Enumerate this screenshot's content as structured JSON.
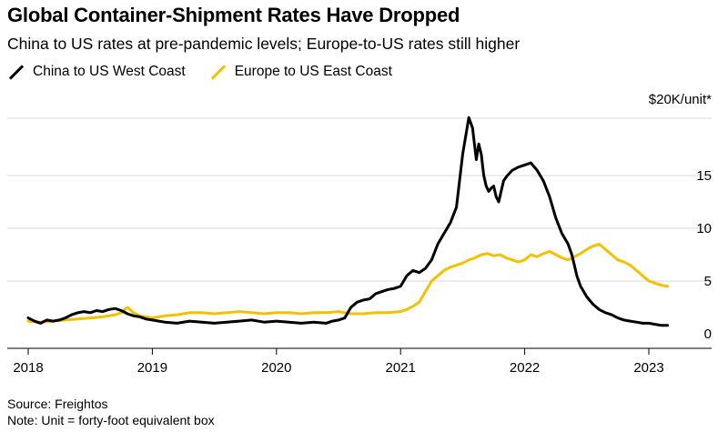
{
  "title": "Global Container-Shipment Rates Have Dropped",
  "subtitle": "China to US rates at pre-pandemic levels; Europe-to-US rates still higher",
  "source": "Source: Freightos",
  "note": "Note: Unit = forty-foot equivalent box",
  "chart_data": {
    "type": "line",
    "title": "Global Container-Shipment Rates Have Dropped",
    "subtitle": "China to US rates at pre-pandemic levels; Europe-to-US rates still higher",
    "ylabel": "$20K/unit*",
    "ylim": [
      0,
      20
    ],
    "y_ticks": [
      0,
      5,
      10,
      15
    ],
    "y_tick_labels": [
      "0",
      "5",
      "10",
      "15"
    ],
    "y_unit_label": "$20K/unit*",
    "x_ticks": [
      2018,
      2019,
      2020,
      2021,
      2022,
      2023
    ],
    "x_tick_labels": [
      "2018",
      "2019",
      "2020",
      "2021",
      "2022",
      "2023"
    ],
    "xlim": [
      2017.98,
      2023.35
    ],
    "grid": "horizontal",
    "legend_position": "top-left",
    "series": [
      {
        "name": "China to US West Coast",
        "color": "#000000",
        "x": [
          2018.0,
          2018.05,
          2018.1,
          2018.15,
          2018.2,
          2018.25,
          2018.3,
          2018.35,
          2018.4,
          2018.45,
          2018.5,
          2018.55,
          2018.6,
          2018.65,
          2018.7,
          2018.75,
          2018.8,
          2018.85,
          2018.9,
          2018.95,
          2019.0,
          2019.1,
          2019.2,
          2019.3,
          2019.4,
          2019.5,
          2019.6,
          2019.7,
          2019.8,
          2019.9,
          2020.0,
          2020.1,
          2020.2,
          2020.3,
          2020.4,
          2020.45,
          2020.5,
          2020.55,
          2020.6,
          2020.65,
          2020.7,
          2020.75,
          2020.8,
          2020.85,
          2020.9,
          2020.95,
          2021.0,
          2021.05,
          2021.1,
          2021.15,
          2021.2,
          2021.25,
          2021.3,
          2021.35,
          2021.4,
          2021.45,
          2021.5,
          2021.55,
          2021.58,
          2021.61,
          2021.63,
          2021.65,
          2021.67,
          2021.69,
          2021.71,
          2021.73,
          2021.75,
          2021.77,
          2021.79,
          2021.81,
          2021.83,
          2021.86,
          2021.9,
          2021.95,
          2022.0,
          2022.05,
          2022.1,
          2022.15,
          2022.2,
          2022.25,
          2022.3,
          2022.35,
          2022.38,
          2022.4,
          2022.42,
          2022.45,
          2022.5,
          2022.55,
          2022.6,
          2022.65,
          2022.7,
          2022.75,
          2022.8,
          2022.85,
          2022.9,
          2022.95,
          2023.0,
          2023.05,
          2023.1,
          2023.15
        ],
        "values": [
          1.5,
          1.2,
          1.0,
          1.3,
          1.2,
          1.3,
          1.5,
          1.8,
          2.0,
          2.1,
          2.0,
          2.2,
          2.1,
          2.3,
          2.4,
          2.2,
          1.9,
          1.7,
          1.6,
          1.4,
          1.3,
          1.1,
          1.0,
          1.2,
          1.1,
          1.0,
          1.1,
          1.2,
          1.3,
          1.1,
          1.2,
          1.1,
          1.0,
          1.1,
          1.0,
          1.2,
          1.3,
          1.5,
          2.5,
          3.0,
          3.2,
          3.3,
          3.8,
          4.0,
          4.2,
          4.3,
          4.5,
          5.5,
          6.0,
          5.8,
          6.2,
          7.0,
          8.5,
          9.5,
          10.5,
          12.0,
          17.0,
          20.5,
          19.5,
          16.5,
          18.0,
          17.0,
          15.0,
          14.0,
          13.5,
          13.8,
          14.0,
          13.0,
          12.5,
          13.5,
          14.5,
          15.0,
          15.5,
          15.8,
          16.0,
          16.2,
          15.5,
          14.5,
          13.0,
          11.0,
          9.5,
          8.5,
          7.5,
          6.5,
          5.5,
          4.5,
          3.5,
          2.8,
          2.3,
          2.0,
          1.8,
          1.5,
          1.3,
          1.2,
          1.1,
          1.0,
          1.0,
          0.9,
          0.8,
          0.8
        ],
        "y_display_note": "values are read off the printed 0–15 axis"
      },
      {
        "name": "Europe to US East Coast",
        "color": "#f2c200",
        "x": [
          2018.0,
          2018.1,
          2018.2,
          2018.3,
          2018.4,
          2018.5,
          2018.6,
          2018.7,
          2018.75,
          2018.8,
          2018.85,
          2018.9,
          2018.95,
          2019.0,
          2019.1,
          2019.2,
          2019.3,
          2019.4,
          2019.5,
          2019.6,
          2019.7,
          2019.8,
          2019.9,
          2020.0,
          2020.1,
          2020.2,
          2020.3,
          2020.4,
          2020.5,
          2020.6,
          2020.7,
          2020.8,
          2020.9,
          2021.0,
          2021.05,
          2021.1,
          2021.15,
          2021.2,
          2021.25,
          2021.3,
          2021.35,
          2021.4,
          2021.45,
          2021.5,
          2021.55,
          2021.6,
          2021.65,
          2021.7,
          2021.75,
          2021.8,
          2021.85,
          2021.9,
          2021.95,
          2022.0,
          2022.05,
          2022.1,
          2022.15,
          2022.2,
          2022.25,
          2022.3,
          2022.35,
          2022.4,
          2022.45,
          2022.5,
          2022.55,
          2022.6,
          2022.65,
          2022.7,
          2022.75,
          2022.8,
          2022.85,
          2022.9,
          2022.95,
          2023.0,
          2023.05,
          2023.1,
          2023.15
        ],
        "values": [
          1.2,
          1.1,
          1.2,
          1.3,
          1.4,
          1.5,
          1.6,
          1.8,
          2.0,
          2.5,
          2.0,
          1.7,
          1.6,
          1.5,
          1.7,
          1.8,
          2.0,
          2.0,
          1.9,
          2.0,
          2.1,
          2.0,
          1.9,
          2.0,
          2.0,
          1.9,
          2.0,
          2.0,
          2.1,
          1.9,
          1.9,
          2.0,
          2.0,
          2.1,
          2.3,
          2.6,
          3.0,
          4.0,
          5.0,
          5.5,
          6.0,
          6.3,
          6.5,
          6.7,
          7.0,
          7.2,
          7.5,
          7.6,
          7.4,
          7.5,
          7.2,
          7.0,
          6.8,
          7.0,
          7.5,
          7.3,
          7.6,
          7.8,
          7.5,
          7.2,
          7.0,
          7.3,
          7.6,
          8.0,
          8.3,
          8.5,
          8.0,
          7.5,
          7.0,
          6.8,
          6.5,
          6.0,
          5.5,
          5.0,
          4.8,
          4.6,
          4.5
        ]
      }
    ]
  }
}
